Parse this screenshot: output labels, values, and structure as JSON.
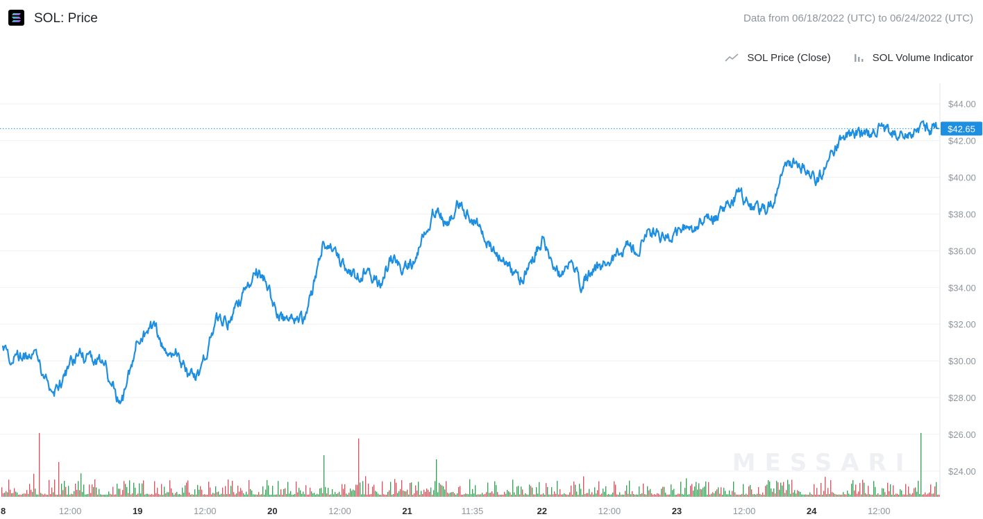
{
  "header": {
    "title": "SOL: Price",
    "date_range": "Data from 06/18/2022 (UTC) to 06/24/2022 (UTC)"
  },
  "legend": [
    {
      "label": "SOL Price (Close)",
      "icon": "line-chart-icon"
    },
    {
      "label": "SOL Volume Indicator",
      "icon": "bar-chart-icon"
    }
  ],
  "watermark": "MESSARI",
  "colors": {
    "price_line": "#1e8fe0",
    "last_price_badge": "#1e8fe0",
    "volume_up": "#2e9e4f",
    "volume_down": "#d94c5a",
    "grid": "#eef0f3",
    "axis_text": "#8d959e"
  },
  "chart_data": {
    "type": "line",
    "title": "SOL: Price",
    "series": [
      {
        "name": "SOL Price (Close)",
        "x_hours": [
          0,
          1,
          3,
          6,
          9,
          12,
          13.5,
          15,
          18,
          21,
          24,
          27,
          29.5,
          31,
          33,
          35,
          38,
          40,
          42,
          45,
          47,
          49,
          51,
          54,
          57,
          59,
          61,
          63,
          65,
          67,
          69,
          71,
          73,
          75,
          77,
          79,
          81,
          84,
          87,
          90,
          92,
          94,
          96,
          99,
          101,
          103,
          105,
          107,
          109,
          111,
          113,
          115,
          117,
          119,
          121,
          123,
          125,
          127,
          129,
          131,
          133,
          135,
          137,
          139,
          141,
          143,
          145,
          147,
          149,
          151,
          153,
          155,
          156.5,
          158,
          160,
          162,
          164,
          166,
          166.6
        ],
        "values": [
          31.1,
          30.3,
          30.2,
          30.1,
          28.1,
          29.8,
          30.3,
          30.1,
          30.0,
          27.4,
          31.2,
          32.0,
          30.2,
          30.5,
          29.2,
          29.2,
          32.3,
          32.1,
          33.2,
          35.0,
          34.3,
          32.4,
          32.1,
          32.3,
          36.4,
          36.2,
          35.0,
          34.5,
          35.0,
          34.1,
          35.6,
          35.1,
          35.2,
          37.0,
          38.3,
          37.3,
          38.5,
          37.6,
          36.2,
          35.2,
          34.2,
          35.5,
          36.6,
          34.7,
          35.4,
          34.2,
          35.0,
          35.2,
          35.7,
          36.2,
          36.1,
          37.0,
          36.8,
          36.6,
          37.2,
          37.1,
          38.0,
          37.8,
          38.5,
          39.2,
          38.4,
          38.1,
          38.6,
          40.3,
          41.0,
          40.3,
          39.8,
          41.0,
          42.0,
          42.4,
          42.2,
          42.5,
          42.6,
          42.5,
          42.4,
          42.6,
          42.5,
          42.7,
          42.65
        ]
      },
      {
        "name": "SOL Volume Indicator",
        "type": "bar",
        "values_relative": []
      }
    ],
    "x_tick_labels": [
      "8",
      "12:00",
      "19",
      "12:00",
      "20",
      "12:00",
      "21",
      "11:35",
      "22",
      "12:00",
      "23",
      "12:00",
      "24",
      "12:00"
    ],
    "x_tick_hours": [
      0,
      12,
      24,
      36,
      48,
      60,
      72,
      83.6,
      96,
      108,
      120,
      132,
      144,
      156
    ],
    "y_tick_labels": [
      "$24.00",
      "$26.00",
      "$28.00",
      "$30.00",
      "$32.00",
      "$34.00",
      "$36.00",
      "$38.00",
      "$40.00",
      "$42.00",
      "$44.00"
    ],
    "y_ticks": [
      24,
      26,
      28,
      30,
      32,
      34,
      36,
      38,
      40,
      42,
      44
    ],
    "ylim": [
      22.6,
      45.5
    ],
    "xlim_hours": [
      0,
      166.6
    ],
    "last_price": 42.65,
    "last_price_label": "$42.65",
    "grid": true,
    "legend_placement": "top-right"
  }
}
